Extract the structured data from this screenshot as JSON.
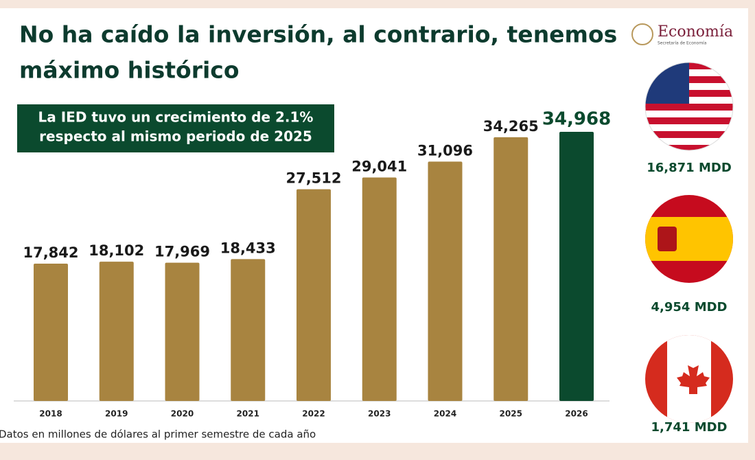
{
  "header": {
    "title_line1": "No ha caído la inversión, al contrario, tenemos",
    "title_line2": "máximo histórico"
  },
  "callout": {
    "line1": "La IED tuvo un crecimiento de 2.1%",
    "line2": "respecto al mismo periodo de 2025"
  },
  "logo": {
    "name": "Economía",
    "subtitle": "Secretaría de Economía"
  },
  "countries": [
    {
      "label": "16,871 MDD"
    },
    {
      "label": "4,954 MDD"
    },
    {
      "label": "1,741 MDD"
    }
  ],
  "footnote": "Datos en millones de dólares al primer semestre de cada año",
  "chart_data": {
    "type": "bar",
    "categories": [
      "2018",
      "2019",
      "2020",
      "2021",
      "2022",
      "2023",
      "2024",
      "2025",
      "2026"
    ],
    "values": [
      17842,
      18102,
      17969,
      18433,
      27512,
      29041,
      31096,
      34265,
      34968
    ],
    "value_labels": [
      "17,842",
      "18,102",
      "17,969",
      "18,433",
      "27,512",
      "29,041",
      "31,096",
      "34,265",
      "34,968"
    ],
    "colors": [
      "#a88440",
      "#a88440",
      "#a88440",
      "#a88440",
      "#a88440",
      "#a88440",
      "#a88440",
      "#a88440",
      "#0b4a2e"
    ]
  }
}
